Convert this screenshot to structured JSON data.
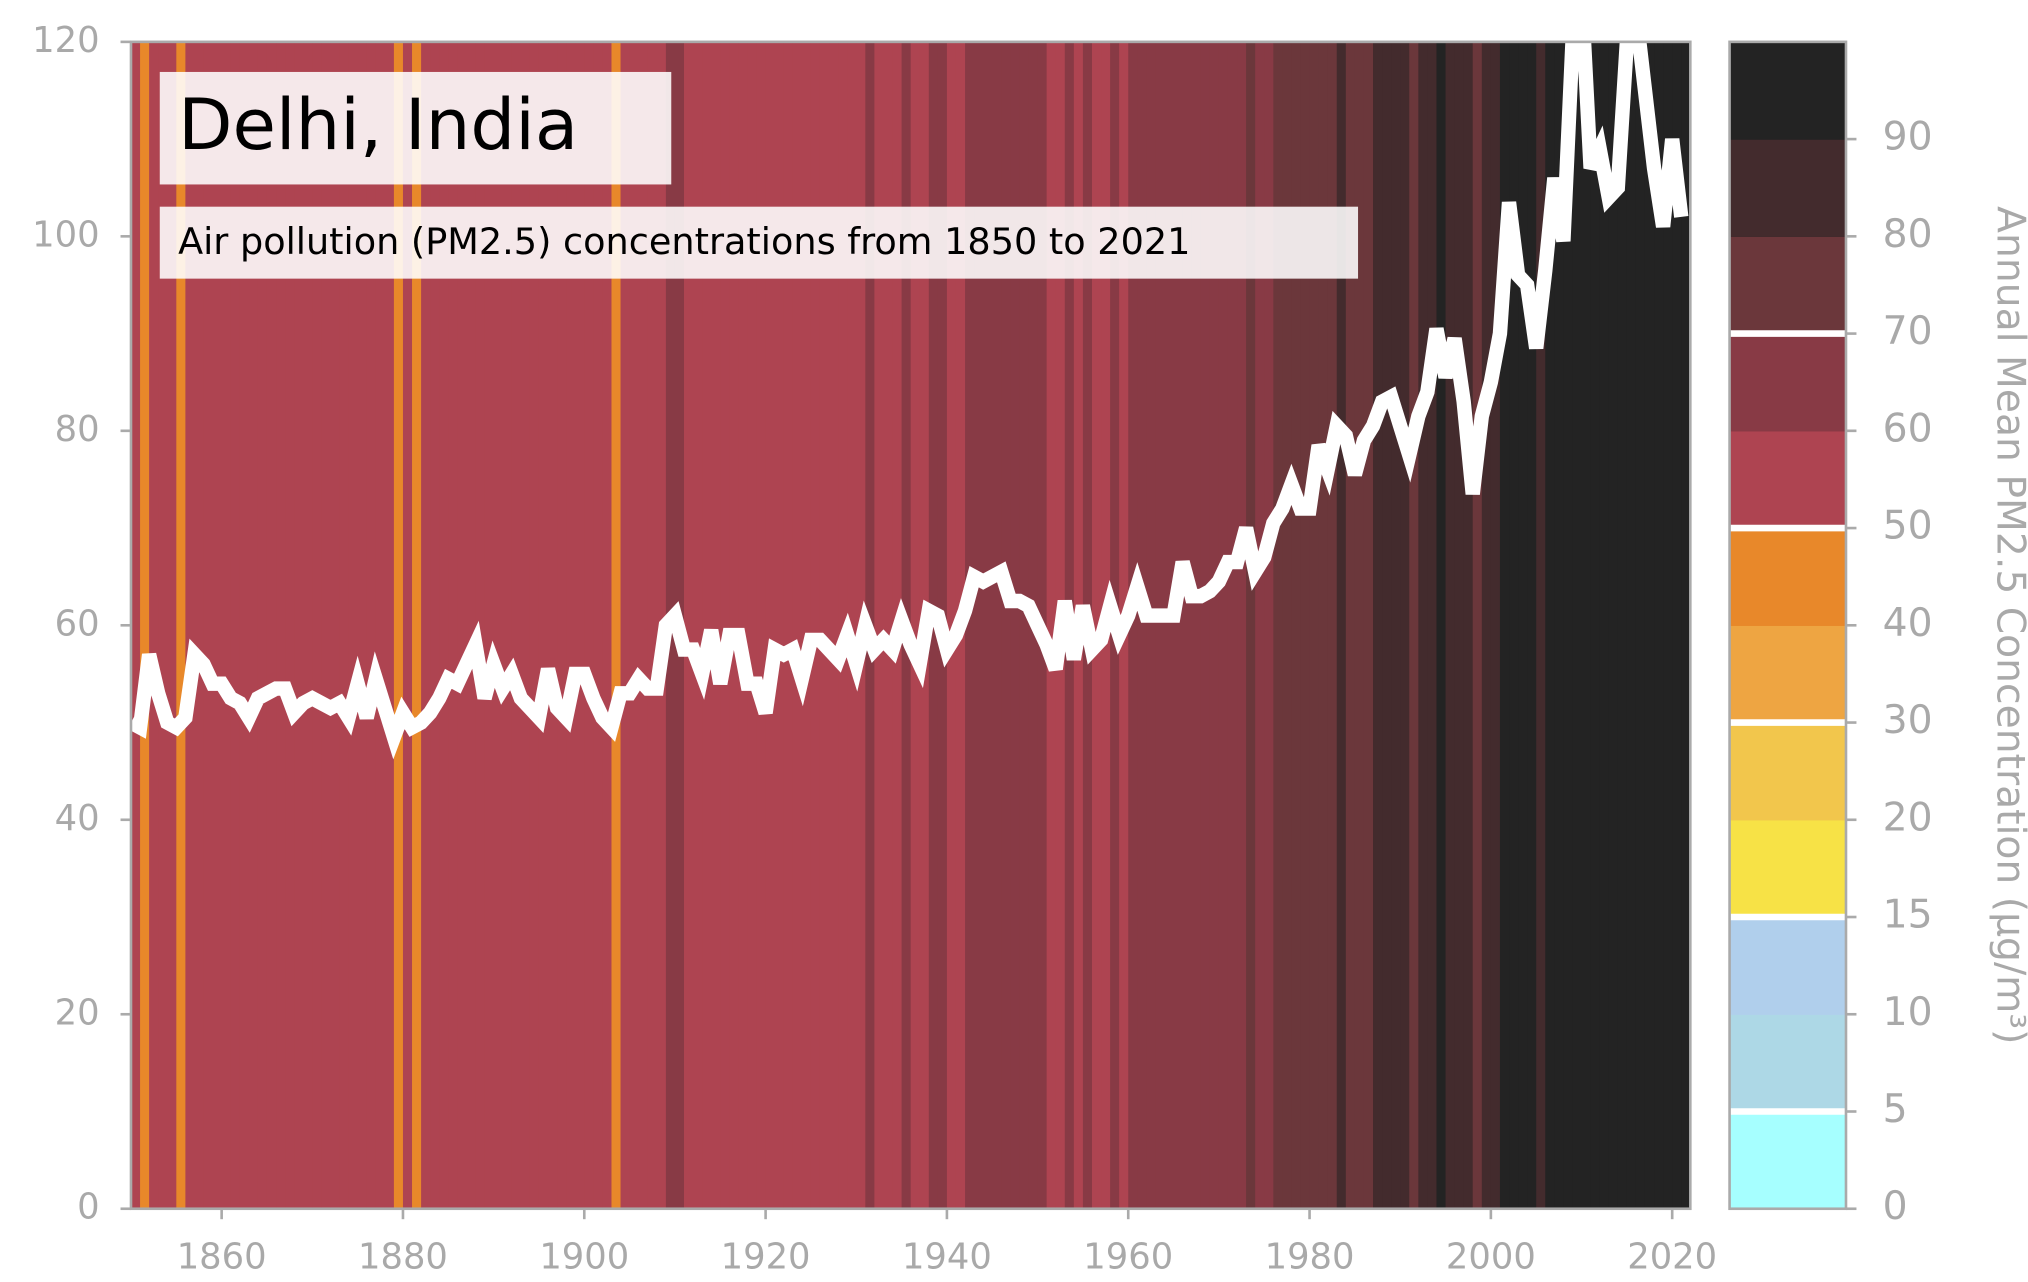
{
  "chart_data": {
    "type": "stripes",
    "title": "Delhi, India",
    "subtitle": "Air pollution (PM2.5) concentrations from 1850 to 2021",
    "x": [
      1850,
      1851,
      1852,
      1853,
      1854,
      1855,
      1856,
      1857,
      1858,
      1859,
      1860,
      1861,
      1862,
      1863,
      1864,
      1865,
      1866,
      1867,
      1868,
      1869,
      1870,
      1871,
      1872,
      1873,
      1874,
      1875,
      1876,
      1877,
      1878,
      1879,
      1880,
      1881,
      1882,
      1883,
      1884,
      1885,
      1886,
      1887,
      1888,
      1889,
      1890,
      1891,
      1892,
      1893,
      1894,
      1895,
      1896,
      1897,
      1898,
      1899,
      1900,
      1901,
      1902,
      1903,
      1904,
      1905,
      1906,
      1907,
      1908,
      1909,
      1910,
      1911,
      1912,
      1913,
      1914,
      1915,
      1916,
      1917,
      1918,
      1919,
      1920,
      1921,
      1922,
      1923,
      1924,
      1925,
      1926,
      1927,
      1928,
      1929,
      1930,
      1931,
      1932,
      1933,
      1934,
      1935,
      1936,
      1937,
      1938,
      1939,
      1940,
      1941,
      1942,
      1943,
      1944,
      1945,
      1946,
      1947,
      1948,
      1949,
      1950,
      1951,
      1952,
      1953,
      1954,
      1955,
      1956,
      1957,
      1958,
      1959,
      1960,
      1961,
      1962,
      1963,
      1964,
      1965,
      1966,
      1967,
      1968,
      1969,
      1970,
      1971,
      1972,
      1973,
      1974,
      1975,
      1976,
      1977,
      1978,
      1979,
      1980,
      1981,
      1982,
      1983,
      1984,
      1985,
      1986,
      1987,
      1988,
      1989,
      1990,
      1991,
      1992,
      1993,
      1994,
      1995,
      1996,
      1997,
      1998,
      1999,
      2000,
      2001,
      2002,
      2003,
      2004,
      2005,
      2006,
      2007,
      2008,
      2009,
      2010,
      2011,
      2012,
      2013,
      2014,
      2015,
      2016,
      2017,
      2018,
      2019,
      2020,
      2021
    ],
    "values": [
      50,
      49.5,
      57,
      53,
      50,
      49.5,
      50.5,
      57,
      56,
      54,
      54,
      52.5,
      52,
      50.5,
      52.5,
      53,
      53.5,
      53.5,
      51,
      52,
      52.5,
      52,
      51.5,
      52,
      50.5,
      54,
      50.5,
      54.5,
      51.5,
      48.5,
      51,
      49.5,
      50,
      51,
      52.5,
      54.5,
      54,
      56,
      58,
      52.5,
      56,
      53.5,
      55,
      52.5,
      51.5,
      50.5,
      55.5,
      51.5,
      50.5,
      55,
      55,
      52.5,
      50.5,
      49.5,
      53,
      53,
      54.5,
      53.5,
      53.5,
      60,
      61,
      57.5,
      57.5,
      55,
      59.5,
      54,
      59,
      59,
      54,
      54,
      51,
      57.5,
      57,
      57.5,
      54.5,
      58.5,
      58.5,
      57.5,
      56.5,
      59,
      56,
      60,
      57.5,
      58.5,
      57.5,
      60.5,
      58,
      56,
      61.5,
      61,
      57.5,
      59,
      61.5,
      65,
      64.5,
      65,
      65.5,
      62.5,
      62.5,
      62,
      60,
      58,
      55.5,
      62.5,
      56.5,
      62,
      57.5,
      58.5,
      62,
      59,
      61,
      64,
      61,
      61,
      61,
      61,
      66.5,
      63,
      63,
      63.5,
      64.5,
      66.5,
      66.5,
      70,
      65.5,
      67,
      70.5,
      72,
      74.5,
      72,
      72,
      78.5,
      76,
      80.5,
      79.5,
      75.5,
      79,
      80.5,
      83,
      83.5,
      80.5,
      77.5,
      81.5,
      84,
      90.5,
      85.5,
      89.5,
      83,
      73.5,
      81.5,
      85,
      90,
      103.5,
      96,
      95,
      88.5,
      96.5,
      106,
      99.5,
      120,
      125,
      107,
      109,
      104,
      105,
      120,
      123,
      115,
      107,
      101,
      110,
      102
    ],
    "line_color": "#ffffff",
    "xlim": [
      1850,
      2022
    ],
    "ylim": [
      0,
      120
    ],
    "xticks": [
      1860,
      1880,
      1900,
      1920,
      1940,
      1960,
      1980,
      2000,
      2020
    ],
    "yticks": [
      0,
      20,
      40,
      60,
      80,
      100,
      120
    ],
    "colorbar": {
      "label": "Annual Mean PM2.5 Concentration (µg/m³)",
      "bounds": [
        0,
        5,
        10,
        15,
        20,
        30,
        40,
        50,
        60,
        70,
        80,
        90
      ],
      "colors": [
        "#a6ffff",
        "#add8e6",
        "#b0cfec",
        "#f7e246",
        "#f2c64c",
        "#eea542",
        "#e8882a",
        "#ae4451",
        "#883a45",
        "#6b373b",
        "#432b2d",
        "#232323"
      ],
      "threshold_lines": [
        5,
        15,
        30,
        50,
        70
      ]
    }
  }
}
